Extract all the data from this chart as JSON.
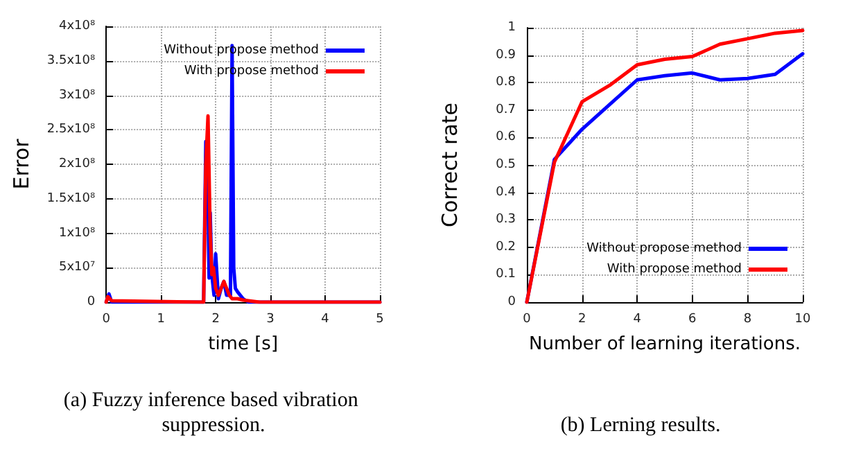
{
  "chart_data": [
    {
      "type": "line",
      "title": "(a) Fuzzy inference based vibration suppression.",
      "xlabel": "time [s]",
      "ylabel": "Error",
      "xlim": [
        0,
        5
      ],
      "ylim": [
        0,
        400000000
      ],
      "xticks": [
        0,
        1,
        2,
        3,
        4,
        5
      ],
      "yticks": [
        0,
        {
          "value": 50000000,
          "label": "5x10⁷"
        },
        {
          "value": 100000000,
          "label": "1x10⁸"
        },
        {
          "value": 150000000,
          "label": "1.5x10⁸"
        },
        {
          "value": 200000000,
          "label": "2x10⁸"
        },
        {
          "value": 250000000,
          "label": "2.5x10⁸"
        },
        {
          "value": 300000000,
          "label": "3x10⁸"
        },
        {
          "value": 350000000,
          "label": "3.5x10⁸"
        },
        {
          "value": 400000000,
          "label": "4x10⁸"
        }
      ],
      "grid": true,
      "legend": "top right",
      "marker": "none",
      "line_style": "solid",
      "series": [
        {
          "name": "Without propose method",
          "color": "#0000ff",
          "x": [
            0,
            0.05,
            0.1,
            1.78,
            1.82,
            1.85,
            1.88,
            1.9,
            1.93,
            1.97,
            2.0,
            2.05,
            2.1,
            2.15,
            2.2,
            2.27,
            2.3,
            2.33,
            2.36,
            2.4,
            2.5,
            2.6,
            5
          ],
          "values": [
            0,
            12000000,
            0,
            0,
            233000000,
            220000000,
            35000000,
            130000000,
            40000000,
            10000000,
            70000000,
            5000000,
            20000000,
            30000000,
            10000000,
            10000000,
            372000000,
            50000000,
            20000000,
            15000000,
            5000000,
            0,
            0
          ]
        },
        {
          "name": "With propose method",
          "color": "#ff0000",
          "x": [
            0,
            0.03,
            0.1,
            1.78,
            1.82,
            1.86,
            1.9,
            1.93,
            1.96,
            2.0,
            2.05,
            2.1,
            2.15,
            2.2,
            2.25,
            2.3,
            2.4,
            2.5,
            2.6,
            2.8,
            5
          ],
          "values": [
            0,
            8000000,
            2000000,
            0,
            200000000,
            270000000,
            100000000,
            40000000,
            50000000,
            20000000,
            10000000,
            20000000,
            30000000,
            20000000,
            10000000,
            5000000,
            5000000,
            3000000,
            2000000,
            0,
            0
          ]
        }
      ]
    },
    {
      "type": "line",
      "title": "(b) Lerning results.",
      "xlabel": "Number of learning iterations.",
      "ylabel": "Correct rate",
      "xlim": [
        0,
        10
      ],
      "ylim": [
        0,
        1
      ],
      "xticks": [
        0,
        2,
        4,
        6,
        8,
        10
      ],
      "yticks": [
        0,
        0.1,
        0.2,
        0.3,
        0.4,
        0.5,
        0.6,
        0.7,
        0.8,
        0.9,
        1
      ],
      "grid": true,
      "legend": "bottom right",
      "marker": "none",
      "line_style": "solid",
      "x": [
        0,
        1,
        2,
        3,
        4,
        5,
        6,
        7,
        8,
        9,
        10
      ],
      "series": [
        {
          "name": "Without propose method",
          "color": "#0000ff",
          "values": [
            0,
            0.52,
            0.63,
            0.72,
            0.81,
            0.825,
            0.835,
            0.81,
            0.815,
            0.83,
            0.905
          ]
        },
        {
          "name": "With propose method",
          "color": "#ff0000",
          "values": [
            0,
            0.51,
            0.73,
            0.79,
            0.865,
            0.885,
            0.895,
            0.94,
            0.96,
            0.98,
            0.99
          ]
        }
      ]
    }
  ]
}
